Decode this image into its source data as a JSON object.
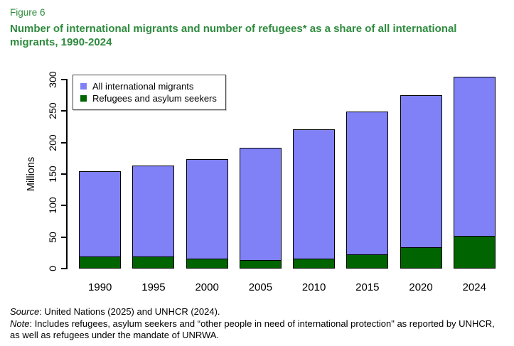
{
  "figure_label": "Figure 6",
  "title": "Number of international migrants and number of refugees* as a share of all international migrants, 1990-2024",
  "colors": {
    "title_green": "#2e8b3e",
    "migrants_blue": "#8080f7",
    "refugees_green": "#006400",
    "axis": "#000000"
  },
  "chart_data": {
    "type": "bar",
    "stacked": true,
    "categories": [
      "1990",
      "1995",
      "2000",
      "2005",
      "2010",
      "2015",
      "2020",
      "2024"
    ],
    "series": [
      {
        "name": "All international migrants",
        "color": "#8080f7",
        "values": [
          154,
          164,
          174,
          192,
          221,
          249,
          275,
          304
        ]
      },
      {
        "name": "Refugees and asylum seekers",
        "color": "#006400",
        "values": [
          19,
          19,
          16,
          14,
          16,
          23,
          34,
          52
        ]
      }
    ],
    "series_note": "Total bar height equals all international migrants; the dark green bottom segment (refugees and asylum seekers) is drawn as a subset within each bar.",
    "xlabel": "",
    "ylabel": "Millions",
    "ylim": [
      0,
      300
    ],
    "yticks": [
      0,
      50,
      100,
      150,
      200,
      250,
      300
    ],
    "grid": false,
    "legend_position": "top-left"
  },
  "source": {
    "prefix": "Source",
    "text": ": United Nations (2025) and UNHCR (2024)."
  },
  "note": {
    "prefix": "Note",
    "text": ": Includes refugees, asylum seekers and “other people in need of international protection\" as reported by UNHCR, as well as refugees under the mandate of UNRWA."
  }
}
